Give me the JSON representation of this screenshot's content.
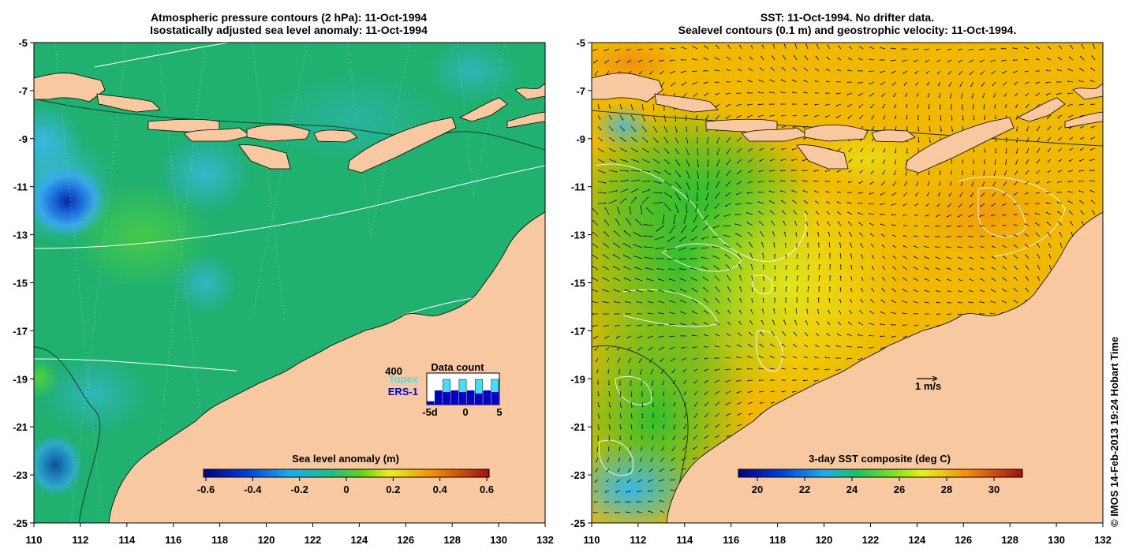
{
  "left_panel": {
    "title_line1": "Atmospheric pressure contours (2 hPa): 11-Oct-1994",
    "title_line2": "Isostatically adjusted sea level anomaly: 11-Oct-1994",
    "colorbar": {
      "label": "Sea level anomaly (m)",
      "ticks": [
        "-0.6",
        "-0.4",
        "-0.2",
        "0",
        "0.2",
        "0.4",
        "0.6"
      ]
    },
    "data_count": {
      "title": "Data count",
      "max_label": "400",
      "topex_label": "Topex",
      "ers_label": "ERS-1",
      "x_ticks": [
        "-5d",
        "0",
        "5"
      ],
      "topex_counts": [
        40,
        170,
        320,
        170,
        320,
        170,
        320,
        170,
        320
      ],
      "ers_counts": [
        40,
        180,
        160,
        180,
        160,
        180,
        140,
        180,
        160
      ],
      "topex_color": "#40e0ff",
      "ers_color": "#0000cc"
    }
  },
  "right_panel": {
    "title_line1": "SST: 11-Oct-1994. No drifter data.",
    "title_line2": "Sealevel contours (0.1 m) and geostrophic velocity: 11-Oct-1994.",
    "colorbar": {
      "label": "3-day SST composite (deg C)",
      "ticks": [
        "20",
        "22",
        "24",
        "26",
        "28",
        "30"
      ]
    },
    "scale_arrow_label": "1 m/s"
  },
  "axes": {
    "lon_ticks": [
      "110",
      "112",
      "114",
      "116",
      "118",
      "120",
      "122",
      "124",
      "126",
      "128",
      "130",
      "132"
    ],
    "lat_ticks": [
      "-5",
      "-7",
      "-9",
      "-11",
      "-13",
      "-15",
      "-17",
      "-19",
      "-21",
      "-23",
      "-25"
    ],
    "lon_range": [
      110,
      132
    ],
    "lat_range": [
      -5,
      -25
    ]
  },
  "copyright": "© IMOS 14-Feb-2013 19:24 Hobart Time",
  "colors": {
    "land": "#f8c8a0",
    "ocean_left": "#20b070",
    "ocean_right": "#f0b800"
  }
}
